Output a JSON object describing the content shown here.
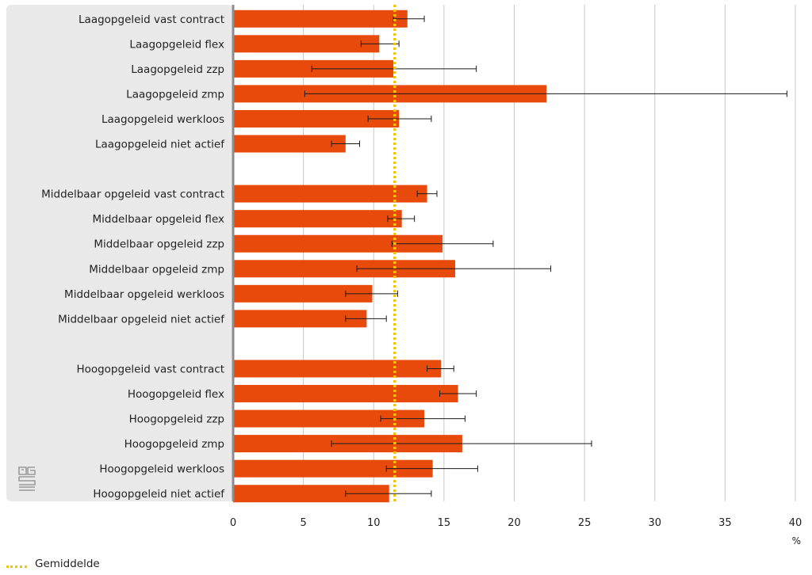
{
  "colors": {
    "bar": "#e84a0b",
    "average_line": "#f5c400",
    "label_bg": "#e9e9e9",
    "axis": "#8c8c8c",
    "grid": "#c8c8c8",
    "errorbar": "#1a1a1a"
  },
  "legend": {
    "average_label": "Gemiddelde"
  },
  "x_unit": "%",
  "logo_icon": "cbs-logo-icon",
  "chart_data": {
    "type": "bar",
    "orientation": "horizontal",
    "categories": [
      "Laagopgeleid vast contract",
      "Laagopgeleid flex",
      "Laagopgeleid zzp",
      "Laagopgeleid zmp",
      "Laagopgeleid werkloos",
      "Laagopgeleid niet actief",
      "",
      "Middelbaar opgeleid vast contract",
      "Middelbaar opgeleid flex",
      "Middelbaar opgeleid zzp",
      "Middelbaar opgeleid zmp",
      "Middelbaar opgeleid werkloos",
      "Middelbaar opgeleid niet actief",
      "",
      "Hoogopgeleid vast contract",
      "Hoogopgeleid flex",
      "Hoogopgeleid zzp",
      "Hoogopgeleid zmp",
      "Hoogopgeleid werkloos",
      "Hoogopgeleid niet actief"
    ],
    "values": [
      12.4,
      10.4,
      11.4,
      22.3,
      11.8,
      8.0,
      null,
      13.8,
      12.0,
      14.9,
      15.8,
      9.9,
      9.5,
      null,
      14.8,
      16.0,
      13.6,
      16.3,
      14.2,
      11.1
    ],
    "error_low": [
      11.4,
      9.1,
      5.6,
      5.1,
      9.6,
      7.0,
      null,
      13.1,
      11.0,
      11.3,
      8.8,
      8.0,
      8.0,
      null,
      13.8,
      14.7,
      10.5,
      7.0,
      10.9,
      8.0
    ],
    "error_high": [
      13.6,
      11.8,
      17.3,
      39.4,
      14.1,
      9.0,
      null,
      14.5,
      12.9,
      18.5,
      22.6,
      11.7,
      10.9,
      null,
      15.7,
      17.3,
      16.5,
      25.5,
      17.4,
      14.1
    ],
    "average": 11.5,
    "xlim": [
      0,
      40
    ],
    "x_ticks": [
      0,
      5,
      10,
      15,
      20,
      25,
      30,
      35,
      40
    ],
    "xlabel": "%",
    "grid": true
  }
}
